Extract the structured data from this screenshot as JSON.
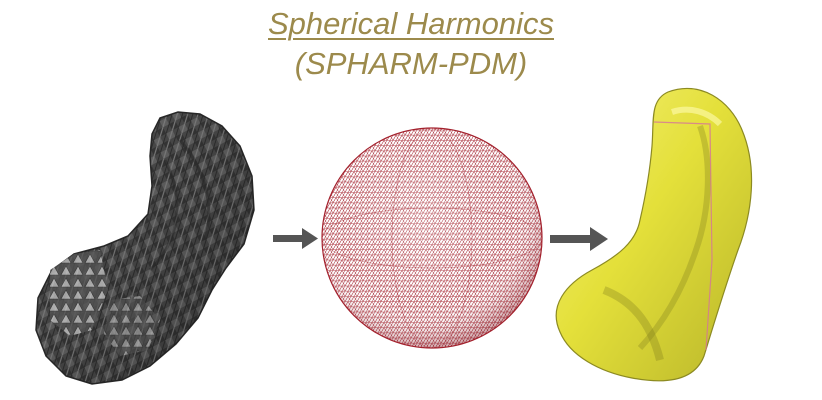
{
  "title": "Spherical Harmonics",
  "subtitle": "(SPHARM-PDM)",
  "colors": {
    "title": "#9c8a4c",
    "arrow": "#555555",
    "voxel_surface": "#4a4a4a",
    "sphere_mesh": "#a3202c",
    "smooth_surface": "#e6e23c"
  },
  "panels": [
    {
      "name": "voxel-hippocampus",
      "description_icon": "voxel-shape-icon"
    },
    {
      "name": "spherical-parameterization-mesh",
      "description_icon": "sphere-mesh-icon"
    },
    {
      "name": "spharm-surface",
      "description_icon": "smooth-shape-icon"
    }
  ]
}
